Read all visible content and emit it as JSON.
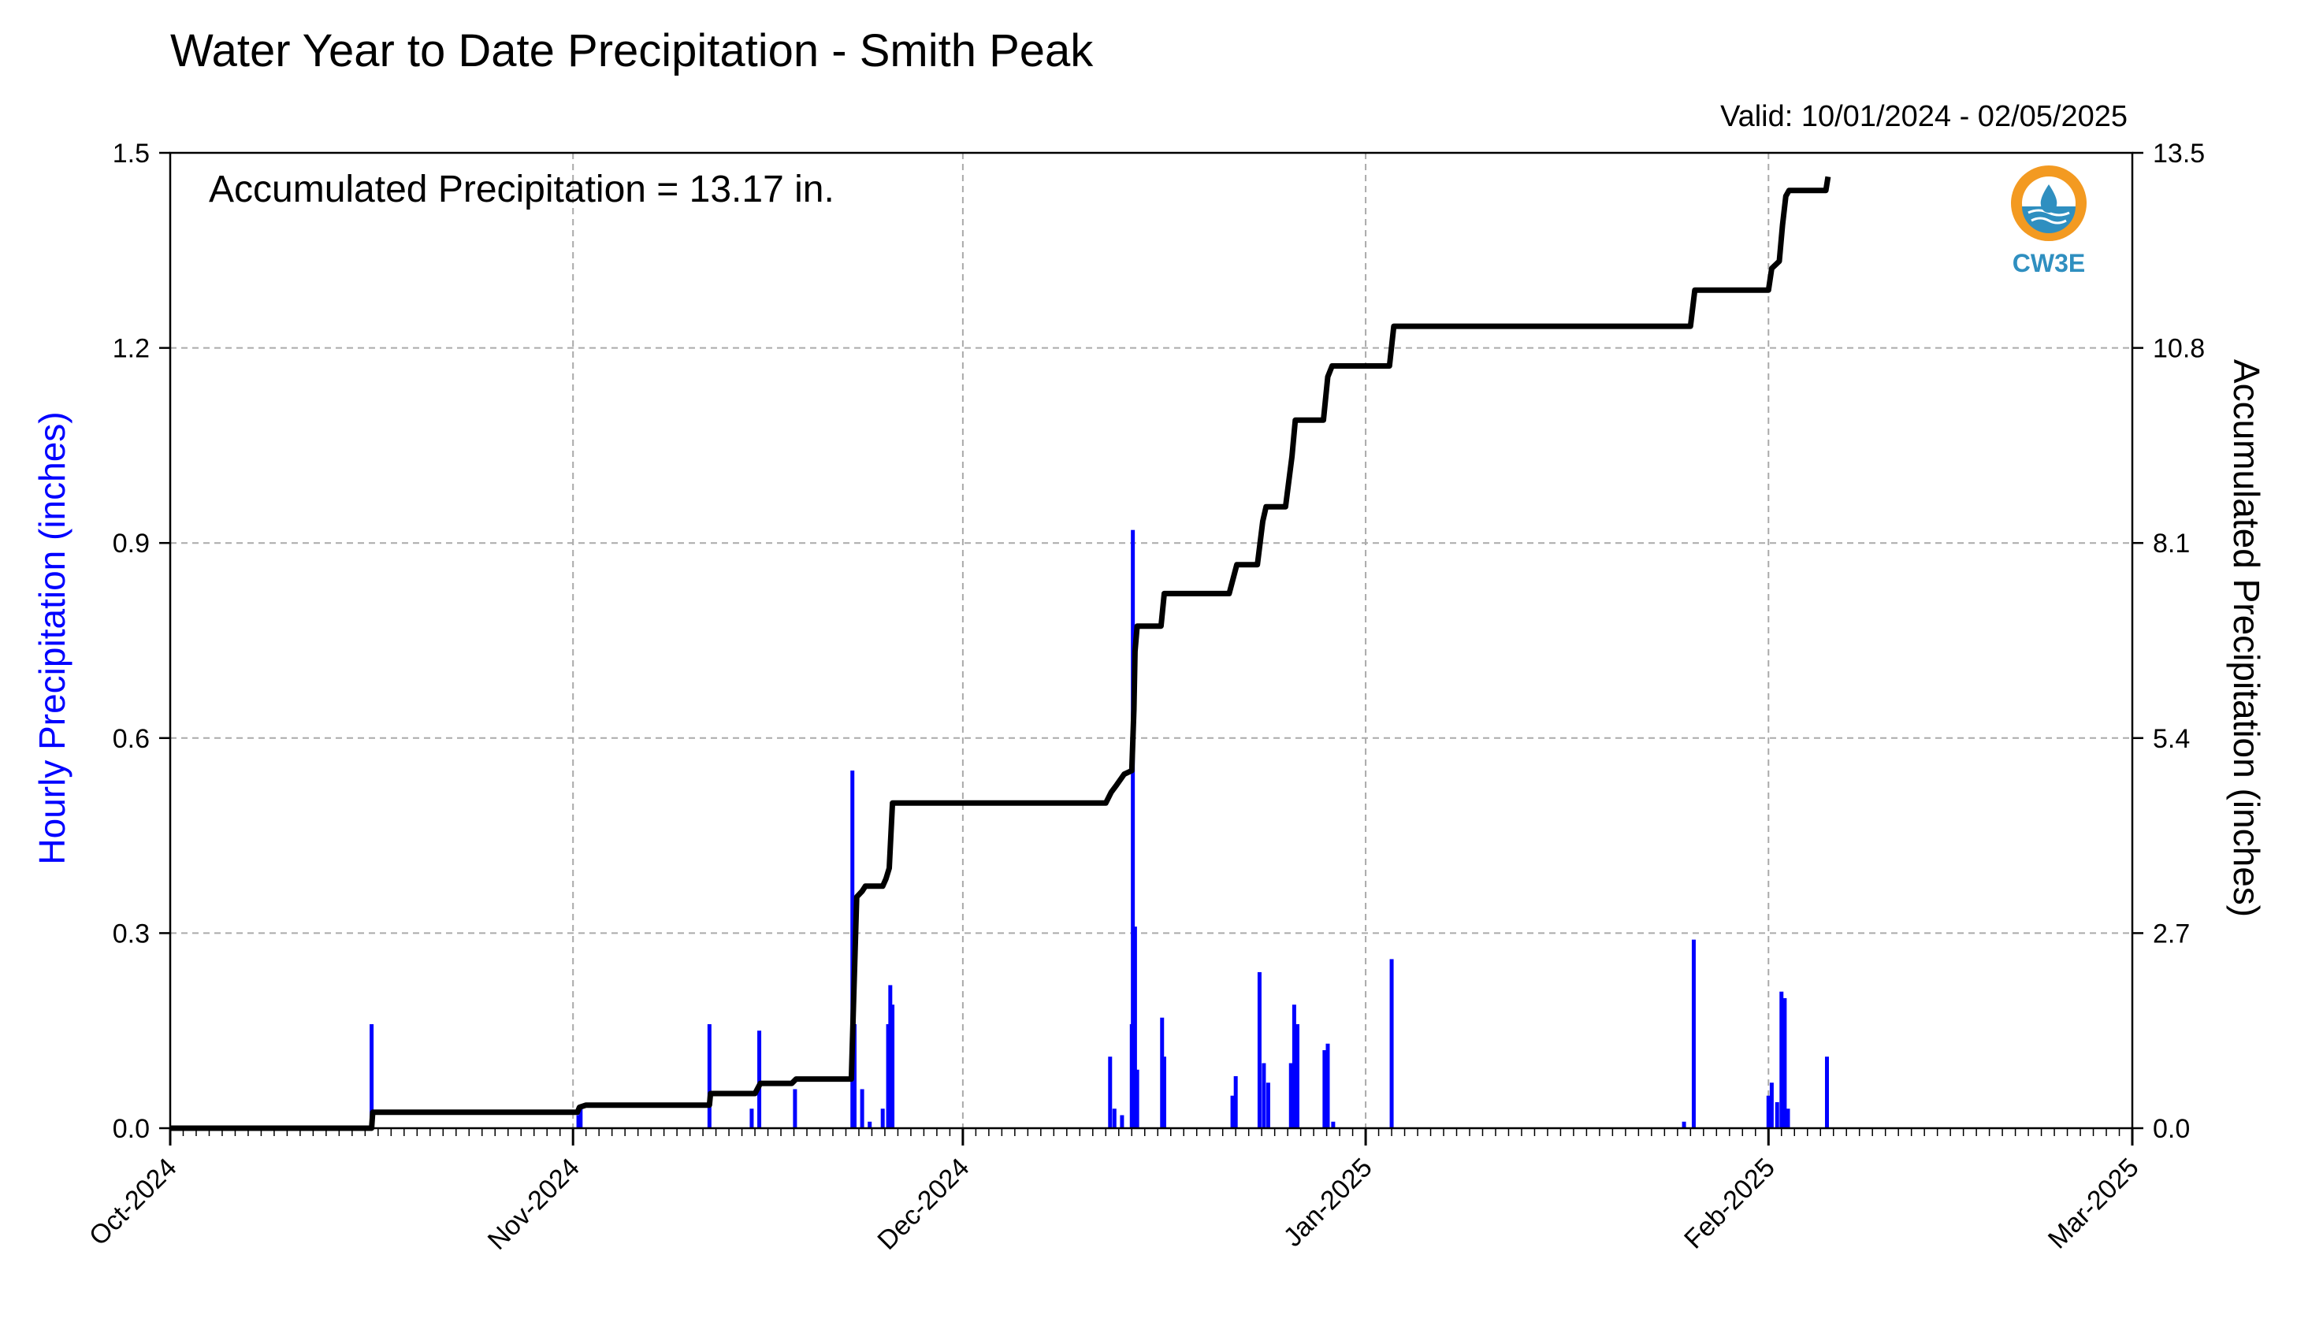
{
  "chart_data": {
    "type": "bar+line",
    "title": "Water Year to Date Precipitation - Smith Peak",
    "valid_text": "Valid: 10/01/2024 - 02/05/2025",
    "annotation": "Accumulated Precipitation = 13.17 in.",
    "logo_text": "CW3E",
    "ylabel_left": "Hourly Precipitation (inches)",
    "ylabel_right": "Accumulated Precipitation (inches)",
    "x_ticks": [
      "Oct-2024",
      "Nov-2024",
      "Dec-2024",
      "Jan-2025",
      "Feb-2025",
      "Mar-2025"
    ],
    "x_range": [
      "2024-10-01",
      "2025-03-01"
    ],
    "y_left_ticks": [
      "0.0",
      "0.3",
      "0.6",
      "0.9",
      "1.2",
      "1.5"
    ],
    "y_left_lim": [
      0,
      1.5
    ],
    "y_right_ticks": [
      "0.0",
      "2.7",
      "5.4",
      "8.1",
      "10.8",
      "13.5"
    ],
    "y_right_lim": [
      0,
      13.5
    ],
    "grid": true,
    "colors": {
      "hourly": "#0000ff",
      "accumulated": "#000000",
      "grid": "#aaaaaa",
      "logo_orange": "#f39a21",
      "logo_blue": "#2f8fc0"
    },
    "series": [
      {
        "name": "Hourly Precipitation",
        "type": "bar",
        "color": "#0000ff",
        "points": [
          [
            "2024-10-16T12:00",
            0.16
          ],
          [
            "2024-11-01T10:00",
            0.02
          ],
          [
            "2024-11-01T14:00",
            0.03
          ],
          [
            "2024-11-11T12:00",
            0.16
          ],
          [
            "2024-11-14T18:00",
            0.03
          ],
          [
            "2024-11-15T08:00",
            0.15
          ],
          [
            "2024-11-18T02:00",
            0.06
          ],
          [
            "2024-11-22T12:00",
            0.55
          ],
          [
            "2024-11-22T16:00",
            0.16
          ],
          [
            "2024-11-23T06:00",
            0.06
          ],
          [
            "2024-11-23T20:00",
            0.01
          ],
          [
            "2024-11-24T20:00",
            0.03
          ],
          [
            "2024-11-25T06:00",
            0.16
          ],
          [
            "2024-11-25T10:00",
            0.22
          ],
          [
            "2024-11-25T14:00",
            0.19
          ],
          [
            "2024-12-12T08:00",
            0.11
          ],
          [
            "2024-12-12T16:00",
            0.03
          ],
          [
            "2024-12-13T06:00",
            0.02
          ],
          [
            "2024-12-14T00:00",
            0.16
          ],
          [
            "2024-12-14T02:00",
            0.92
          ],
          [
            "2024-12-14T06:00",
            0.31
          ],
          [
            "2024-12-14T10:00",
            0.09
          ],
          [
            "2024-12-16T08:00",
            0.17
          ],
          [
            "2024-12-16T12:00",
            0.11
          ],
          [
            "2024-12-21T18:00",
            0.05
          ],
          [
            "2024-12-22T00:00",
            0.08
          ],
          [
            "2024-12-23T20:00",
            0.24
          ],
          [
            "2024-12-24T04:00",
            0.1
          ],
          [
            "2024-12-24T12:00",
            0.07
          ],
          [
            "2024-12-26T06:00",
            0.1
          ],
          [
            "2024-12-26T12:00",
            0.19
          ],
          [
            "2024-12-26T18:00",
            0.16
          ],
          [
            "2024-12-28T20:00",
            0.12
          ],
          [
            "2024-12-29T02:00",
            0.13
          ],
          [
            "2024-12-29T12:00",
            0.01
          ],
          [
            "2025-01-03T00:00",
            0.26
          ],
          [
            "2025-01-25T12:00",
            0.01
          ],
          [
            "2025-01-26T06:00",
            0.29
          ],
          [
            "2025-02-01T00:00",
            0.05
          ],
          [
            "2025-02-01T06:00",
            0.07
          ],
          [
            "2025-02-01T16:00",
            0.04
          ],
          [
            "2025-02-02T00:00",
            0.21
          ],
          [
            "2025-02-02T06:00",
            0.2
          ],
          [
            "2025-02-02T12:00",
            0.03
          ],
          [
            "2025-02-05T12:00",
            0.11
          ]
        ]
      },
      {
        "name": "Accumulated Precipitation",
        "type": "line",
        "color": "#000000",
        "points": [
          [
            "2024-10-01T00:00",
            0.0
          ],
          [
            "2024-10-16T12:00",
            0.0
          ],
          [
            "2024-10-16T14:00",
            0.22
          ],
          [
            "2024-11-01T08:00",
            0.22
          ],
          [
            "2024-11-01T12:00",
            0.29
          ],
          [
            "2024-11-02T00:00",
            0.32
          ],
          [
            "2024-11-11T12:00",
            0.32
          ],
          [
            "2024-11-11T14:00",
            0.48
          ],
          [
            "2024-11-15T00:00",
            0.48
          ],
          [
            "2024-11-15T10:00",
            0.62
          ],
          [
            "2024-11-17T20:00",
            0.62
          ],
          [
            "2024-11-18T04:00",
            0.68
          ],
          [
            "2024-11-22T10:00",
            0.68
          ],
          [
            "2024-11-22T14:00",
            1.7
          ],
          [
            "2024-11-22T20:00",
            3.2
          ],
          [
            "2024-11-23T06:00",
            3.28
          ],
          [
            "2024-11-23T12:00",
            3.35
          ],
          [
            "2024-11-24T20:00",
            3.35
          ],
          [
            "2024-11-25T02:00",
            3.45
          ],
          [
            "2024-11-25T08:00",
            3.6
          ],
          [
            "2024-11-25T14:00",
            4.5
          ],
          [
            "2024-12-12T00:00",
            4.5
          ],
          [
            "2024-12-12T10:00",
            4.65
          ],
          [
            "2024-12-12T20:00",
            4.75
          ],
          [
            "2024-12-13T10:00",
            4.9
          ],
          [
            "2024-12-14T00:00",
            4.95
          ],
          [
            "2024-12-14T04:00",
            5.8
          ],
          [
            "2024-12-14T06:00",
            6.6
          ],
          [
            "2024-12-14T10:00",
            6.95
          ],
          [
            "2024-12-15T00:00",
            6.95
          ],
          [
            "2024-12-16T06:00",
            6.95
          ],
          [
            "2024-12-16T12:00",
            7.4
          ],
          [
            "2024-12-21T12:00",
            7.4
          ],
          [
            "2024-12-22T02:00",
            7.8
          ],
          [
            "2024-12-23T16:00",
            7.8
          ],
          [
            "2024-12-24T02:00",
            8.4
          ],
          [
            "2024-12-24T08:00",
            8.6
          ],
          [
            "2024-12-25T20:00",
            8.6
          ],
          [
            "2024-12-26T08:00",
            9.3
          ],
          [
            "2024-12-26T14:00",
            9.8
          ],
          [
            "2024-12-28T18:00",
            9.8
          ],
          [
            "2024-12-29T02:00",
            10.4
          ],
          [
            "2024-12-29T10:00",
            10.55
          ],
          [
            "2025-01-02T20:00",
            10.55
          ],
          [
            "2025-01-03T04:00",
            11.1
          ],
          [
            "2025-01-26T00:00",
            11.1
          ],
          [
            "2025-01-26T08:00",
            11.6
          ],
          [
            "2025-02-01T00:00",
            11.6
          ],
          [
            "2025-02-01T06:00",
            11.9
          ],
          [
            "2025-02-01T20:00",
            12.0
          ],
          [
            "2025-02-02T02:00",
            12.5
          ],
          [
            "2025-02-02T08:00",
            12.9
          ],
          [
            "2025-02-02T14:00",
            12.98
          ],
          [
            "2025-02-05T10:00",
            12.98
          ],
          [
            "2025-02-05T14:00",
            13.17
          ]
        ]
      }
    ]
  }
}
